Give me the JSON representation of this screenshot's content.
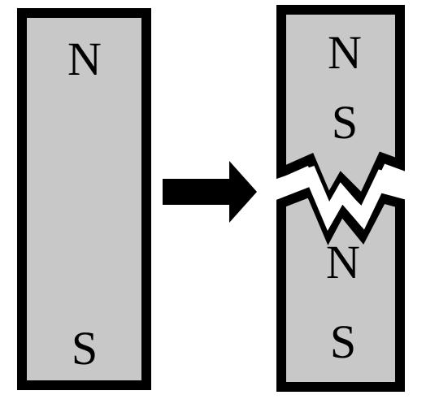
{
  "colors": {
    "magnet_fill": "#c8c8c8",
    "outline": "#000000",
    "background": "#ffffff"
  },
  "whole_magnet": {
    "north_label": "N",
    "south_label": "S"
  },
  "arrow": {
    "icon": "right-arrow-icon"
  },
  "broken_magnet": {
    "top_piece": {
      "north_label": "N",
      "south_label": "S"
    },
    "bottom_piece": {
      "north_label": "N",
      "south_label": "S"
    },
    "break_icon": "zigzag-crack-icon"
  }
}
